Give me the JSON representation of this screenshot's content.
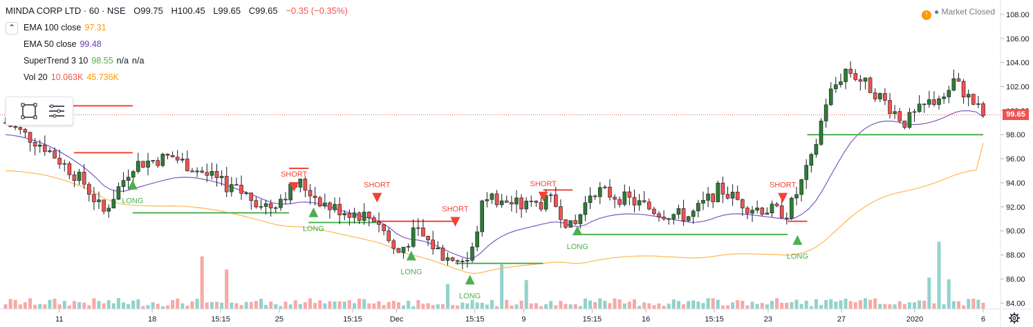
{
  "header": {
    "symbol": "MINDA CORP LTD · 60 · NSE",
    "open_label": "O",
    "open": "99.75",
    "high_label": "H",
    "high": "100.45",
    "low_label": "L",
    "low": "99.65",
    "close_label": "C",
    "close": "99.65",
    "change": "−0.35 (−0.35%)"
  },
  "indicators": {
    "ema100": {
      "label": "EMA 100 close",
      "value": "97.31",
      "color": "#ff9800"
    },
    "ema50": {
      "label": "EMA 50 close",
      "value": "99.48",
      "color": "#673ab7"
    },
    "supertrend": {
      "label": "SuperTrend 3 10",
      "value": "98.55",
      "na1": "n/a",
      "na2": "n/a",
      "color": "#4caf50"
    },
    "vol": {
      "label": "Vol 20",
      "value1": "10.063K",
      "value2": "45.736K",
      "color1": "#ef5350",
      "color2": "#ff9800"
    }
  },
  "market_status": {
    "icon": "!",
    "text": "Market Closed"
  },
  "last_price": "99.65",
  "colors": {
    "up": "#26a69a",
    "up_body": "#2e7d32",
    "down": "#ef5350",
    "ema100": "#ffb74d",
    "ema50": "#7e57c2",
    "supertrend_up": "#4caf50",
    "supertrend_down": "#f44336"
  },
  "chart_data": {
    "type": "line",
    "y_axis": {
      "ticks": [
        "108.00",
        "106.00",
        "104.00",
        "102.00",
        "100.00",
        "98.00",
        "96.00",
        "94.00",
        "92.00",
        "90.00",
        "88.00",
        "86.00",
        "84.00"
      ],
      "range": [
        83.5,
        109.2
      ]
    },
    "x_axis": {
      "ticks": [
        "11",
        "18",
        "15:15",
        "25",
        "15:15",
        "Dec",
        "15:15",
        "9",
        "15:15",
        "16",
        "15:15",
        "23",
        "27",
        "2020",
        "6"
      ]
    },
    "signals": [
      {
        "type": "LONG",
        "price": 93.9
      },
      {
        "type": "SHORT",
        "price": 93.6
      },
      {
        "type": "LONG",
        "price": 91.6
      },
      {
        "type": "SHORT",
        "price": 92.7
      },
      {
        "type": "LONG",
        "price": 88.0
      },
      {
        "type": "SHORT",
        "price": 90.7
      },
      {
        "type": "LONG",
        "price": 86.0
      },
      {
        "type": "SHORT",
        "price": 92.8
      },
      {
        "type": "LONG",
        "price": 90.1
      },
      {
        "type": "SHORT",
        "price": 92.7
      },
      {
        "type": "LONG",
        "price": 89.3
      }
    ],
    "supertrend": [
      {
        "dir": "down",
        "from": 0,
        "to": 0.13,
        "level": 100.4
      },
      {
        "dir": "down",
        "from": 0.07,
        "to": 0.13,
        "level": 96.5
      },
      {
        "dir": "up",
        "from": 0.13,
        "to": 0.29,
        "level": 91.5
      },
      {
        "dir": "down",
        "from": 0.29,
        "to": 0.31,
        "level": 95.2
      },
      {
        "dir": "up",
        "from": 0.31,
        "to": 0.38,
        "level": 90.7
      },
      {
        "dir": "down",
        "from": 0.38,
        "to": 0.46,
        "level": 90.8
      },
      {
        "dir": "up",
        "from": 0.46,
        "to": 0.55,
        "level": 87.3
      },
      {
        "dir": "down",
        "from": 0.55,
        "to": 0.58,
        "level": 93.4
      },
      {
        "dir": "up",
        "from": 0.58,
        "to": 0.8,
        "level": 89.7
      },
      {
        "dir": "down",
        "from": 0.8,
        "to": 0.82,
        "level": 90.8
      },
      {
        "dir": "up",
        "from": 0.82,
        "to": 1.0,
        "level": 98.0
      }
    ],
    "ema100_last": 97.31,
    "ema50_last": 99.48,
    "last_close": 99.65,
    "vol_last": "10.063K",
    "vol_ma": "45.736K"
  }
}
